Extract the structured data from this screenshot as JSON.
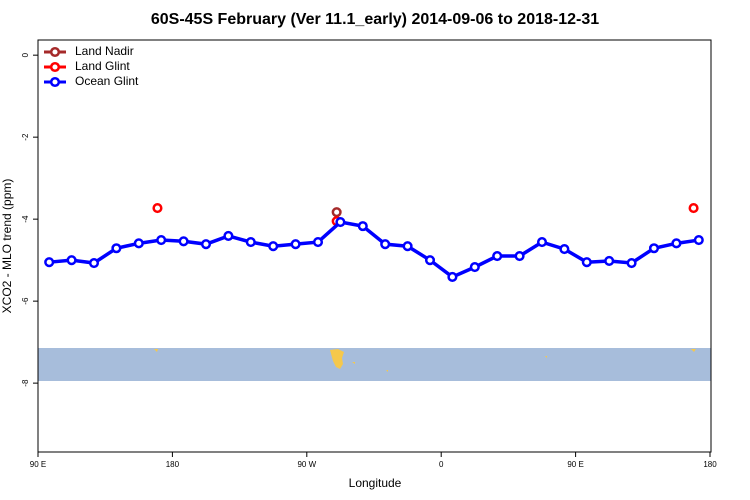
{
  "chart_data": {
    "type": "line",
    "title": "60S-45S February (Ver 11.1_early)   2014-09-06 to 2018-12-31",
    "x_label": "Longitude",
    "y_label": "XCO2 - MLO trend (ppm)",
    "xlim": [
      90,
      540
    ],
    "ylim": [
      -9.68,
      0.37
    ],
    "xticks": [
      {
        "value": 90,
        "label": "90 E"
      },
      180,
      {
        "value": 270,
        "label": "90 W"
      },
      {
        "value": 360,
        "label": "0"
      },
      {
        "value": 450,
        "label": "90 E"
      },
      {
        "value": 540,
        "label": "180"
      }
    ],
    "yticks": [
      0,
      -2,
      -4,
      -6,
      -8
    ],
    "legend": "top-left",
    "series": [
      {
        "name": "Land Nadir",
        "color": "#a52a2a",
        "mode": "markers",
        "x": [
          290
        ],
        "values": [
          -3.83
        ]
      },
      {
        "name": "Land Glint",
        "color": "#ff0000",
        "mode": "markers",
        "x": [
          170,
          290,
          529
        ],
        "values": [
          -3.73,
          -4.05,
          -3.73
        ]
      },
      {
        "name": "Ocean Glint",
        "color": "#0000ff",
        "mode": "lines+markers",
        "x": [
          97.5,
          112.5,
          127.5,
          142.5,
          157.5,
          172.5,
          187.5,
          202.5,
          217.5,
          232.5,
          247.5,
          262.5,
          277.5,
          292.5,
          307.5,
          322.5,
          337.5,
          352.5,
          367.5,
          382.5,
          397.5,
          412.5,
          427.5,
          442.5,
          457.5,
          472.5,
          487.5,
          502.5,
          517.5,
          532.5
        ],
        "values": [
          -5.05,
          -5.0,
          -5.07,
          -4.71,
          -4.59,
          -4.51,
          -4.54,
          -4.61,
          -4.41,
          -4.56,
          -4.66,
          -4.61,
          -4.56,
          -4.07,
          -4.17,
          -4.61,
          -4.66,
          -5.0,
          -5.41,
          -5.17,
          -4.9,
          -4.9,
          -4.56,
          -4.73,
          -5.05,
          -5.02,
          -5.07,
          -4.71,
          -4.59,
          -4.51
        ]
      }
    ]
  }
}
